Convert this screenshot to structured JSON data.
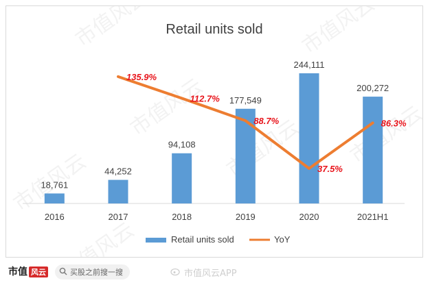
{
  "chart_data": {
    "type": "bar",
    "title": "Retail units sold",
    "categories": [
      "2016",
      "2017",
      "2018",
      "2019",
      "2020",
      "2021H1"
    ],
    "series": [
      {
        "name": "Retail units sold",
        "type": "bar",
        "color": "#5b9bd5",
        "values": [
          18761,
          44252,
          94108,
          177549,
          244111,
          200272
        ],
        "labels": [
          "18,761",
          "44,252",
          "94,108",
          "177,549",
          "244,111",
          "200,272"
        ]
      },
      {
        "name": "YoY",
        "type": "line",
        "color": "#ed7d31",
        "values": [
          null,
          135.9,
          112.7,
          88.7,
          37.5,
          86.3
        ],
        "labels": [
          null,
          "135.9%",
          "112.7%",
          "88.7%",
          "37.5%",
          "86.3%"
        ],
        "label_color": "#e8141b"
      }
    ],
    "ylim": [
      0,
      280000
    ],
    "line_ylim": [
      0,
      160
    ],
    "grid": false,
    "legend_position": "bottom"
  },
  "footer": {
    "brand": "市值",
    "brand_tag": "风云",
    "search_text": "买股之前搜一搜",
    "watermark": "市值风云APP",
    "search_icon": "search-icon"
  }
}
